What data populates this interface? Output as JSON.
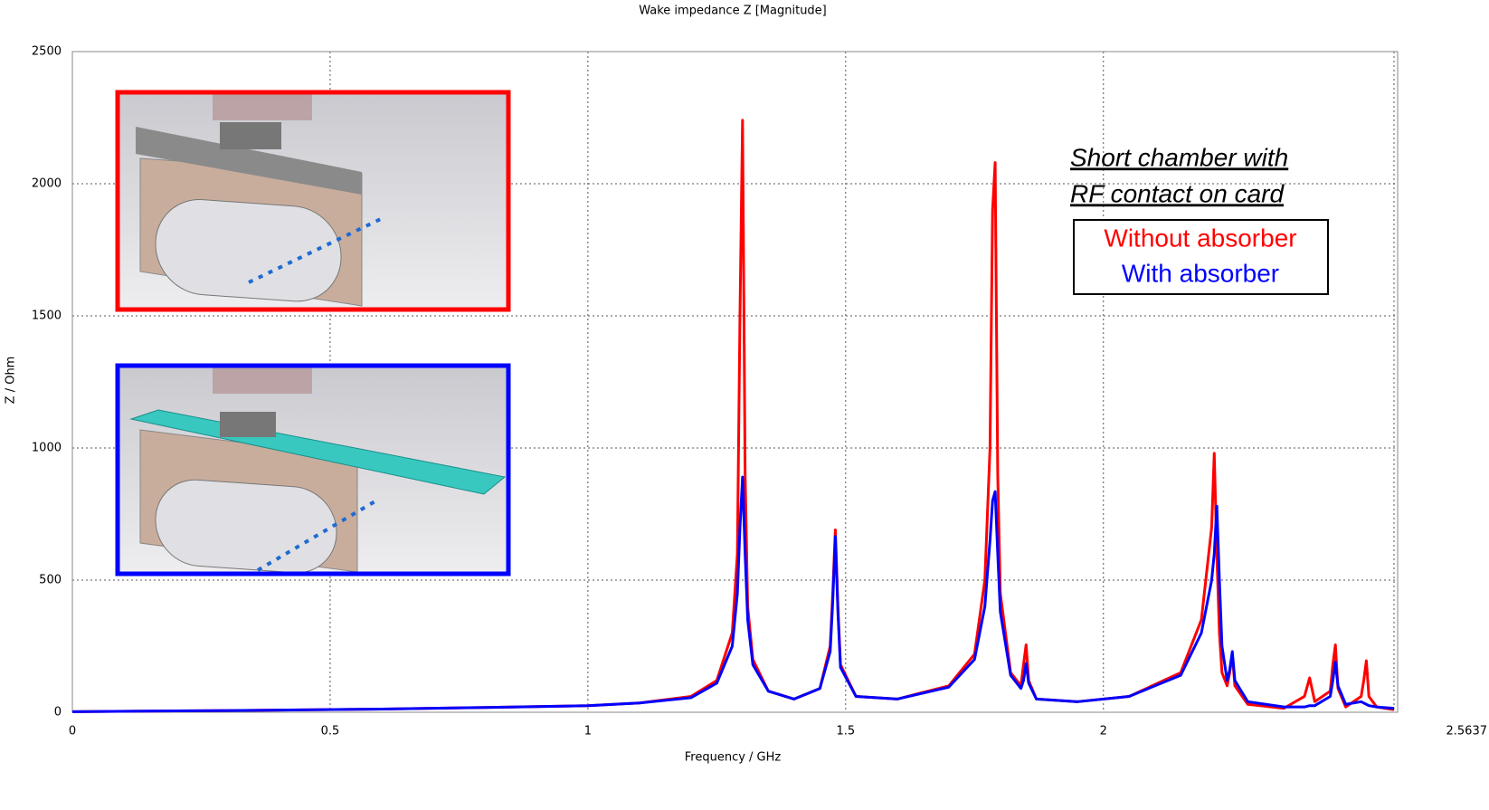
{
  "chart_data": {
    "type": "line",
    "title": "Wake impedance Z [Magnitude]",
    "xlabel": "Frequency / GHz",
    "ylabel": "Z / Ohm",
    "annotations": [
      "Short chamber with",
      "RF contact on card"
    ],
    "x": [
      0,
      0.2,
      0.4,
      0.6,
      0.8,
      1.0,
      1.1,
      1.2,
      1.25,
      1.28,
      1.29,
      1.295,
      1.3,
      1.305,
      1.31,
      1.32,
      1.35,
      1.4,
      1.45,
      1.47,
      1.475,
      1.48,
      1.485,
      1.49,
      1.52,
      1.6,
      1.7,
      1.75,
      1.77,
      1.78,
      1.785,
      1.79,
      1.795,
      1.8,
      1.82,
      1.84,
      1.845,
      1.85,
      1.855,
      1.87,
      1.95,
      2.05,
      2.15,
      2.19,
      2.21,
      2.215,
      2.22,
      2.225,
      2.23,
      2.24,
      2.245,
      2.25,
      2.255,
      2.28,
      2.35,
      2.39,
      2.4,
      2.41,
      2.44,
      2.445,
      2.45,
      2.455,
      2.47,
      2.5,
      2.505,
      2.51,
      2.515,
      2.53,
      2.5637
    ],
    "series": [
      {
        "name": "Without absorber",
        "color": "#ff0000",
        "values": [
          2,
          5,
          8,
          12,
          18,
          25,
          35,
          60,
          120,
          300,
          600,
          1500,
          2240,
          900,
          400,
          200,
          80,
          50,
          90,
          250,
          450,
          690,
          400,
          180,
          60,
          50,
          100,
          220,
          500,
          1000,
          1900,
          2080,
          900,
          450,
          150,
          100,
          180,
          255,
          120,
          50,
          40,
          60,
          150,
          350,
          700,
          980,
          600,
          300,
          150,
          100,
          150,
          220,
          100,
          30,
          15,
          60,
          130,
          40,
          80,
          180,
          255,
          90,
          20,
          60,
          120,
          195,
          60,
          20,
          10
        ]
      },
      {
        "name": "With absorber",
        "color": "#0000ff",
        "values": [
          2,
          5,
          8,
          12,
          18,
          25,
          35,
          55,
          110,
          250,
          450,
          700,
          890,
          600,
          350,
          180,
          80,
          50,
          90,
          230,
          420,
          665,
          380,
          170,
          60,
          50,
          95,
          200,
          400,
          650,
          800,
          835,
          600,
          380,
          140,
          90,
          120,
          185,
          110,
          50,
          40,
          60,
          140,
          300,
          500,
          600,
          780,
          500,
          250,
          120,
          160,
          230,
          120,
          40,
          20,
          20,
          25,
          25,
          60,
          120,
          190,
          100,
          30,
          40,
          35,
          30,
          25,
          20,
          15
        ]
      }
    ],
    "xlim": [
      0,
      2.5637
    ],
    "xticks": [
      0,
      0.5,
      1,
      1.5,
      2,
      2.5637
    ],
    "ylim": [
      0,
      2500
    ],
    "yticks": [
      0,
      500,
      1000,
      1500,
      2000,
      2500
    ],
    "grid": true
  }
}
